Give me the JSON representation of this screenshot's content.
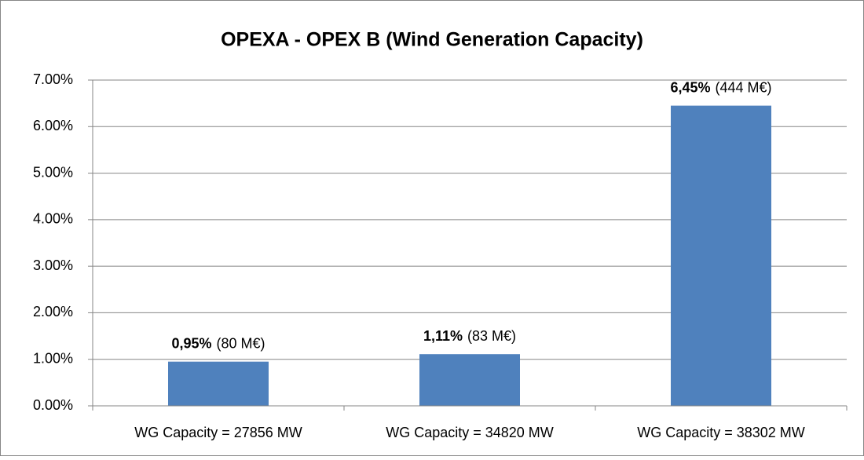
{
  "chart_data": {
    "type": "bar",
    "title": "OPEXA - OPEX B (Wind Generation Capacity)",
    "categories": [
      "WG Capacity = 27856 MW",
      "WG Capacity = 34820 MW",
      "WG Capacity = 38302 MW"
    ],
    "values": [
      0.95,
      1.11,
      6.45
    ],
    "value_labels": [
      "0,95%",
      "1,11%",
      "6,45%"
    ],
    "value_notes": [
      "(80 M€)",
      "(83 M€)",
      "(444 M€)"
    ],
    "color": "#4f81bd",
    "ylim": [
      0,
      7
    ],
    "yticks": [
      {
        "value": 0,
        "label": "0.00%"
      },
      {
        "value": 1,
        "label": "1.00%"
      },
      {
        "value": 2,
        "label": "2.00%"
      },
      {
        "value": 3,
        "label": "3.00%"
      },
      {
        "value": 4,
        "label": "4.00%"
      },
      {
        "value": 5,
        "label": "5.00%"
      },
      {
        "value": 6,
        "label": "6.00%"
      },
      {
        "value": 7,
        "label": "7.00%"
      }
    ],
    "grid": true
  }
}
